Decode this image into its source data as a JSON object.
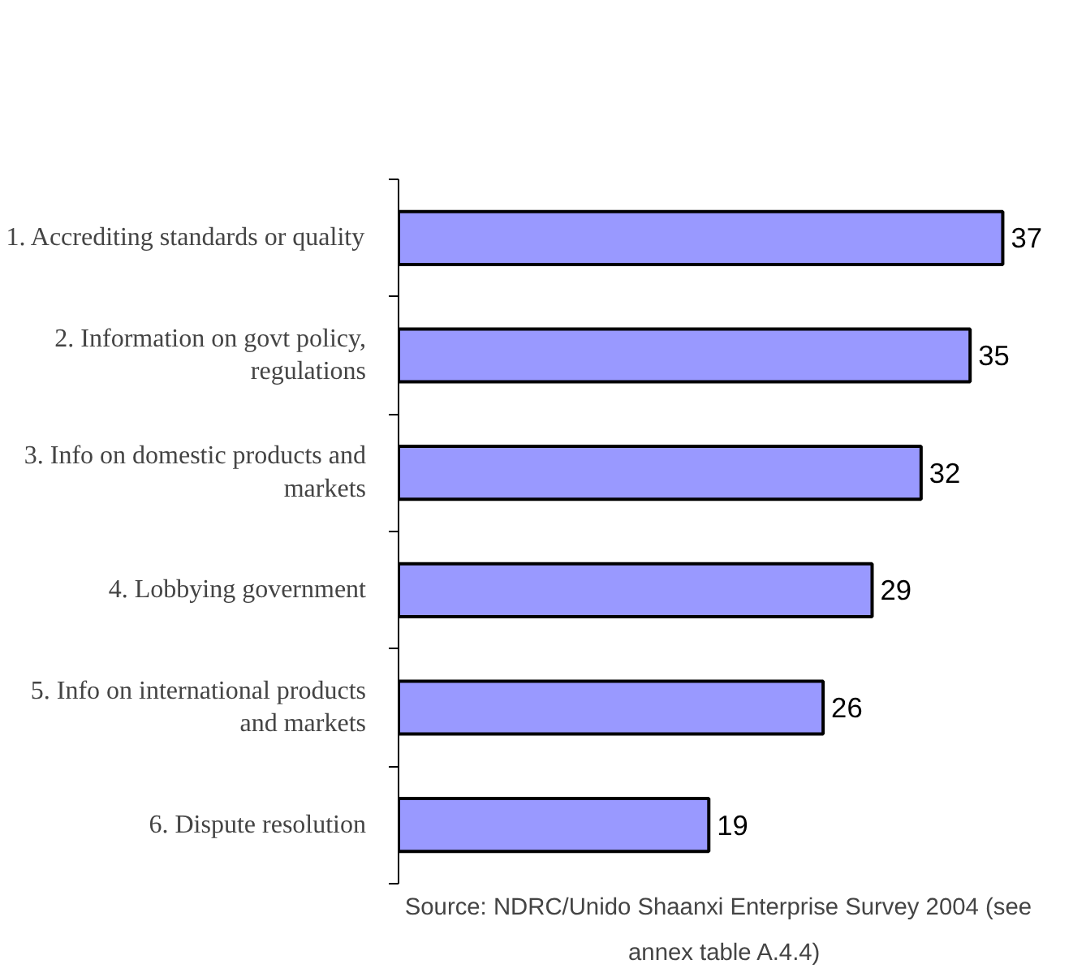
{
  "chart_data": {
    "type": "bar",
    "orientation": "horizontal",
    "categories": [
      "1. Accrediting standards or quality",
      "2. Information on govt policy, regulations",
      "3. Info on domestic products and markets",
      "4. Lobbying government",
      "5. Info on international products and markets",
      "6. Dispute resolution"
    ],
    "values": [
      37,
      35,
      32,
      29,
      26,
      19
    ],
    "color": "#9999ff",
    "data_labels": true,
    "grid": false,
    "annotations": [
      "Source: NDRC/Unido  Shaanxi Enterprise Survey  2004 (see annex table A.4.4)"
    ]
  }
}
